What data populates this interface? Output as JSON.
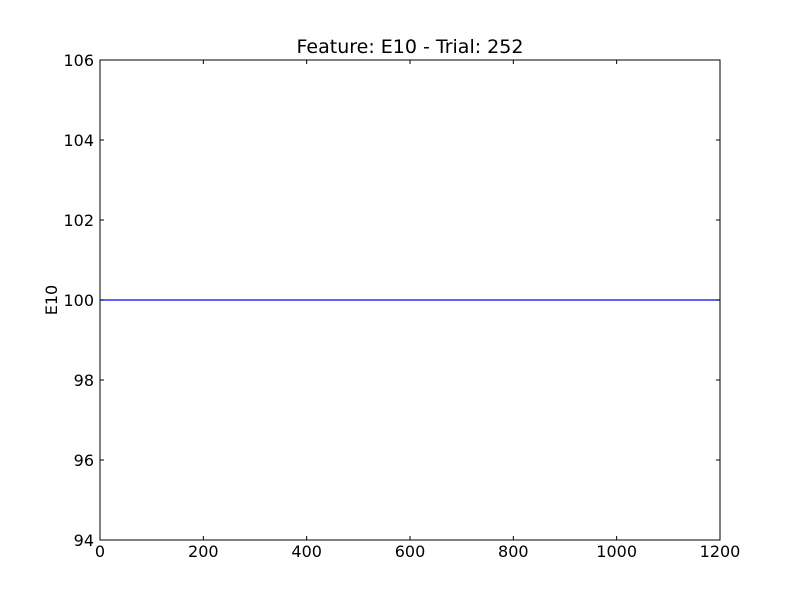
{
  "chart_data": {
    "type": "line",
    "title": "Feature: E10 - Trial: 252",
    "xlabel": "",
    "ylabel": "E10",
    "xlim": [
      0,
      1200
    ],
    "ylim": [
      94,
      106
    ],
    "xticks": [
      "0",
      "200",
      "400",
      "600",
      "800",
      "1000",
      "1200"
    ],
    "yticks": [
      "94",
      "96",
      "98",
      "100",
      "102",
      "104",
      "106"
    ],
    "grid": false,
    "series": [
      {
        "color": "#0000ff",
        "x": [
          0,
          1200
        ],
        "y": [
          100,
          100
        ]
      }
    ]
  }
}
